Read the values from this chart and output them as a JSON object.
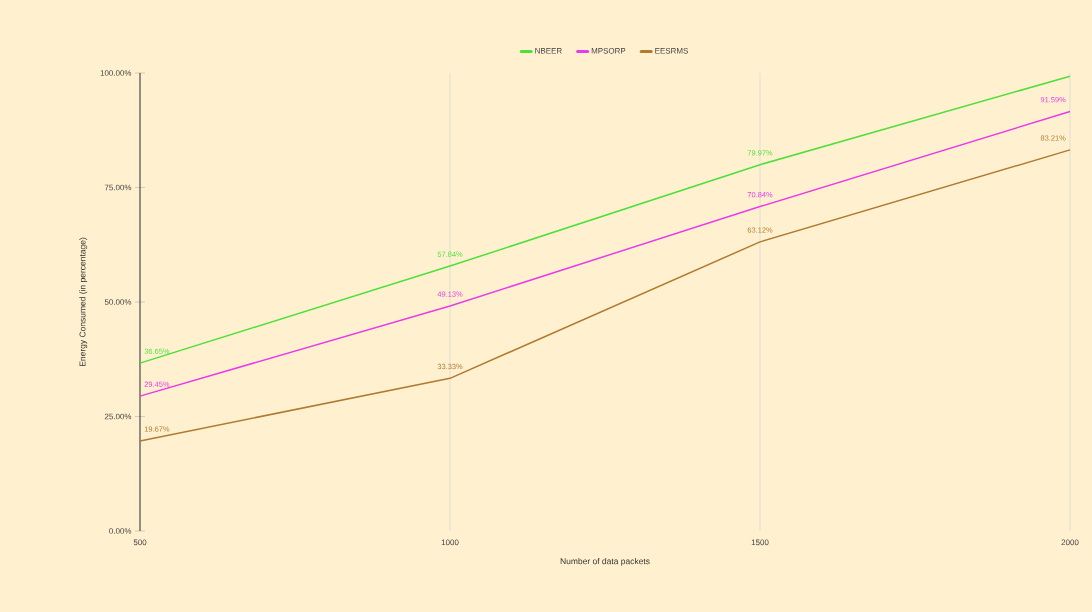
{
  "chart_data": {
    "type": "line",
    "xlabel": "Number of data packets",
    "ylabel": "Energy Consumed (in percentage)",
    "x": [
      500,
      1000,
      1500,
      2000
    ],
    "series": [
      {
        "name": "NBEER",
        "color": "#4ddf3a",
        "values": [
          36.65,
          57.84,
          79.97,
          99.3
        ],
        "value_labels": [
          "36.65%",
          "57.84%",
          "79.97%",
          null
        ]
      },
      {
        "name": "MPSORP",
        "color": "#e83ce8",
        "values": [
          29.45,
          49.13,
          70.84,
          91.59
        ],
        "value_labels": [
          "29.45%",
          "49.13%",
          "70.84%",
          "91.59%"
        ]
      },
      {
        "name": "EESRMS",
        "color": "#b07a30",
        "values": [
          19.67,
          33.33,
          63.12,
          83.21
        ],
        "value_labels": [
          "19.67%",
          "33.33%",
          "63.12%",
          "83.21%"
        ]
      }
    ],
    "xlim": [
      500,
      2000
    ],
    "xticks": [
      500,
      1000,
      1500,
      2000
    ],
    "ylim": [
      0,
      100
    ],
    "yticks": [
      {
        "value": 0,
        "label": "0.00%"
      },
      {
        "value": 25,
        "label": "25.00%"
      },
      {
        "value": 50,
        "label": "50.00%"
      },
      {
        "value": 75,
        "label": "75.00%"
      },
      {
        "value": 100,
        "label": "100.00%"
      }
    ],
    "grid": "x",
    "legend": "top",
    "marker": "none",
    "line_style": "solid"
  }
}
